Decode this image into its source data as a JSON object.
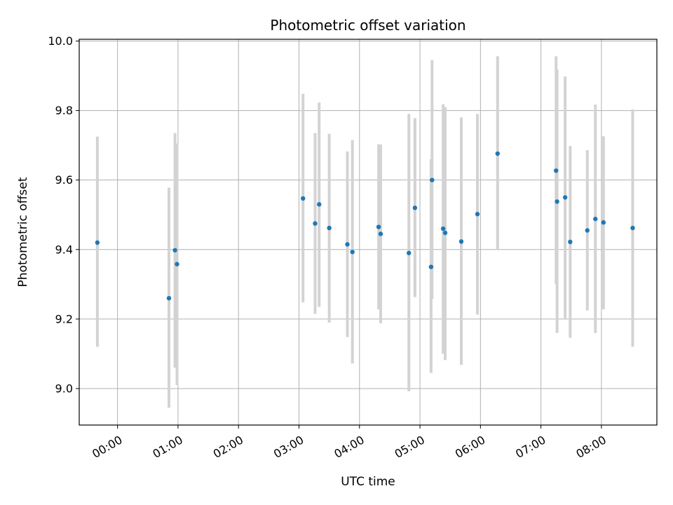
{
  "chart_data": {
    "type": "scatter",
    "title": "Photometric offset variation",
    "xlabel": "UTC time",
    "ylabel": "Photometric offset",
    "x_unit": "UTC time (HH:MM)",
    "xlim": [
      "23:22",
      "08:55"
    ],
    "ylim": [
      8.895,
      10.005
    ],
    "grid": true,
    "x_ticks": [
      "00:00",
      "01:00",
      "02:00",
      "03:00",
      "04:00",
      "05:00",
      "06:00",
      "07:00",
      "08:00"
    ],
    "y_ticks": [
      "9.0",
      "9.2",
      "9.4",
      "9.6",
      "9.8",
      "10.0"
    ],
    "marker_color": "#1f77b4",
    "errorbar_color": "#d3d3d3",
    "points": [
      {
        "x": "23:40",
        "y": 9.42,
        "y_low": 9.12,
        "y_high": 9.725
      },
      {
        "x": "00:51",
        "y": 9.26,
        "y_low": 8.945,
        "y_high": 9.578
      },
      {
        "x": "00:57",
        "y": 9.398,
        "y_low": 9.06,
        "y_high": 9.735
      },
      {
        "x": "00:59",
        "y": 9.358,
        "y_low": 9.01,
        "y_high": 9.705
      },
      {
        "x": "03:04",
        "y": 9.547,
        "y_low": 9.248,
        "y_high": 9.848
      },
      {
        "x": "03:16",
        "y": 9.475,
        "y_low": 9.215,
        "y_high": 9.735
      },
      {
        "x": "03:20",
        "y": 9.53,
        "y_low": 9.235,
        "y_high": 9.823
      },
      {
        "x": "03:30",
        "y": 9.462,
        "y_low": 9.19,
        "y_high": 9.733
      },
      {
        "x": "03:48",
        "y": 9.415,
        "y_low": 9.148,
        "y_high": 9.682
      },
      {
        "x": "03:53",
        "y": 9.393,
        "y_low": 9.072,
        "y_high": 9.715
      },
      {
        "x": "04:19",
        "y": 9.465,
        "y_low": 9.228,
        "y_high": 9.703
      },
      {
        "x": "04:21",
        "y": 9.445,
        "y_low": 9.188,
        "y_high": 9.702
      },
      {
        "x": "04:49",
        "y": 9.39,
        "y_low": 8.992,
        "y_high": 9.79
      },
      {
        "x": "04:55",
        "y": 9.52,
        "y_low": 9.263,
        "y_high": 9.778
      },
      {
        "x": "05:11",
        "y": 9.35,
        "y_low": 9.045,
        "y_high": 9.66
      },
      {
        "x": "05:12",
        "y": 9.6,
        "y_low": 9.258,
        "y_high": 9.945
      },
      {
        "x": "05:23",
        "y": 9.46,
        "y_low": 9.1,
        "y_high": 9.818
      },
      {
        "x": "05:25",
        "y": 9.448,
        "y_low": 9.082,
        "y_high": 9.81
      },
      {
        "x": "05:41",
        "y": 9.423,
        "y_low": 9.068,
        "y_high": 9.78
      },
      {
        "x": "05:57",
        "y": 9.502,
        "y_low": 9.213,
        "y_high": 9.79
      },
      {
        "x": "06:17",
        "y": 9.676,
        "y_low": 9.398,
        "y_high": 9.956
      },
      {
        "x": "07:15",
        "y": 9.627,
        "y_low": 9.3,
        "y_high": 9.956
      },
      {
        "x": "07:16",
        "y": 9.538,
        "y_low": 9.16,
        "y_high": 9.918
      },
      {
        "x": "07:24",
        "y": 9.55,
        "y_low": 9.2,
        "y_high": 9.898
      },
      {
        "x": "07:29",
        "y": 9.422,
        "y_low": 9.146,
        "y_high": 9.698
      },
      {
        "x": "07:46",
        "y": 9.455,
        "y_low": 9.225,
        "y_high": 9.686
      },
      {
        "x": "07:54",
        "y": 9.488,
        "y_low": 9.16,
        "y_high": 9.817
      },
      {
        "x": "08:02",
        "y": 9.478,
        "y_low": 9.228,
        "y_high": 9.726
      },
      {
        "x": "08:31",
        "y": 9.462,
        "y_low": 9.12,
        "y_high": 9.803
      }
    ]
  }
}
